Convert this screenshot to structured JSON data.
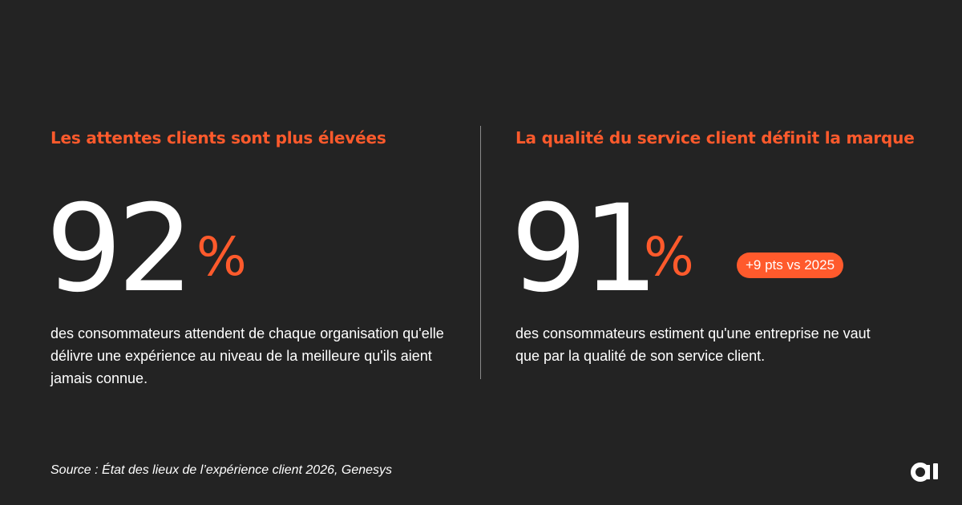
{
  "colors": {
    "background": "#232323",
    "accent": "#ff5a2c",
    "text": "#ffffff",
    "divider": "#8a8a8a"
  },
  "left": {
    "heading": "Les attentes clients sont plus élevées",
    "stat_number": "92",
    "stat_unit": "%",
    "description": "des consommateurs attendent de chaque organisation qu'elle délivre une expérience au niveau de la meilleure qu'ils aient jamais connue."
  },
  "right": {
    "heading": "La qualité du service client définit la marque",
    "stat_number": "91",
    "stat_unit": "%",
    "badge": "+9 pts vs 2025",
    "description": "des consommateurs estiment qu'une entreprise ne vaut que par la qualité de son service client."
  },
  "footer": {
    "source": "Source : État des lieux de l’expérience client 2026, Genesys",
    "logo_icon": "ai-logo-icon"
  }
}
